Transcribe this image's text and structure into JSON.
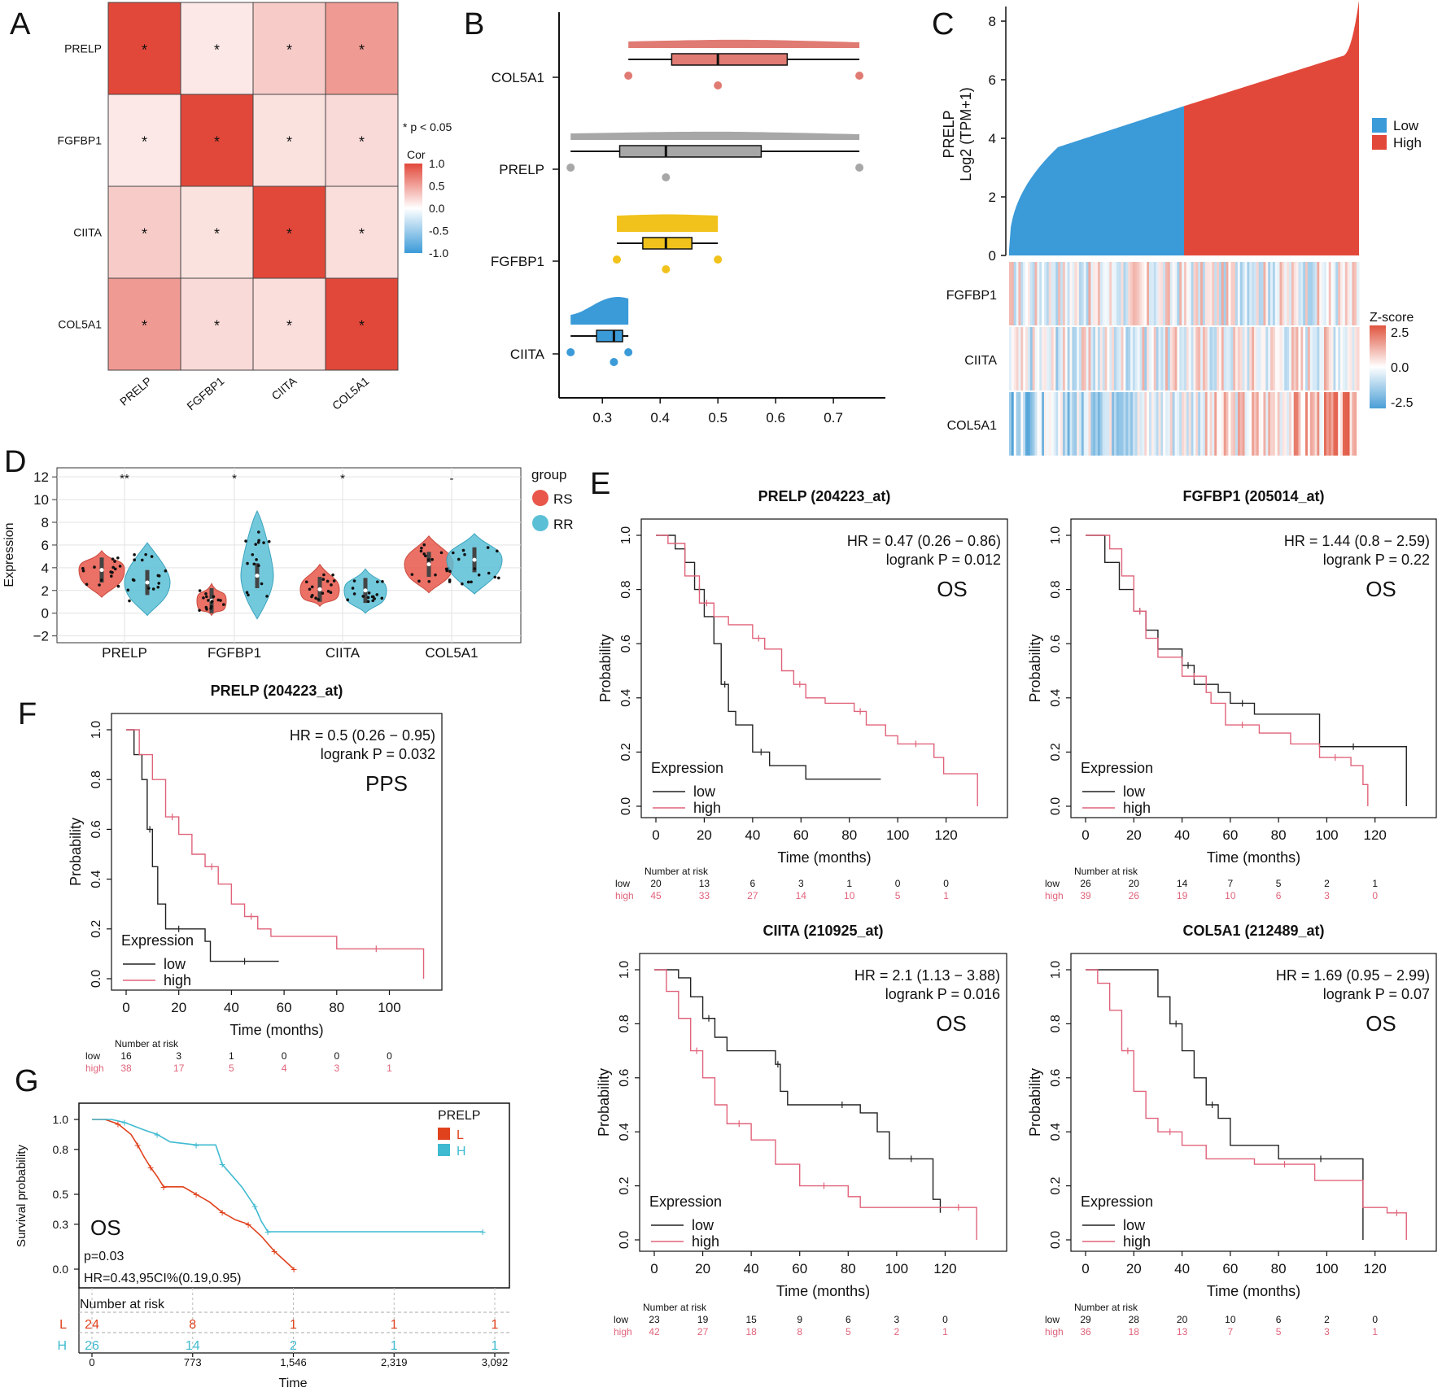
{
  "colors": {
    "red": "#e2483a",
    "blue": "#3b9ad8",
    "gray": "#a7a7a7",
    "yellow": "#f1c21b",
    "km_low": "#222222",
    "km_high": "#e0637a",
    "rs": "#e8574a",
    "rr": "#5bc0d6",
    "g_low": "#e0421d",
    "g_high": "#3fbad0"
  },
  "panel_letters": {
    "a": "A",
    "b": "B",
    "c": "C",
    "d": "D",
    "e": "E",
    "f": "F",
    "g": "G"
  },
  "chart_data": [
    {
      "id": "A",
      "type": "heatmap",
      "genes": [
        "PRELP",
        "FGFBP1",
        "CIITA",
        "COL5A1"
      ],
      "matrix": [
        [
          1.0,
          0.12,
          0.28,
          0.55
        ],
        [
          0.12,
          1.0,
          0.16,
          0.2
        ],
        [
          0.28,
          0.16,
          1.0,
          0.18
        ],
        [
          0.55,
          0.2,
          0.18,
          1.0
        ]
      ],
      "star": "*",
      "sig_note": "* p < 0.05",
      "legend_title": "Cor",
      "legend_ticks": [
        "1.0",
        "0.5",
        "0.0",
        "-0.5",
        "-1.0"
      ],
      "range": [
        -1,
        1
      ]
    },
    {
      "id": "B",
      "type": "raincloud",
      "categories": [
        "COL5A1",
        "PRELP",
        "FGFBP1",
        "CIITA"
      ],
      "boxes": [
        {
          "name": "COL5A1",
          "color": "#e07b73",
          "min": 0.345,
          "q1": 0.42,
          "median": 0.5,
          "q3": 0.62,
          "max": 0.745,
          "points": [
            0.345,
            0.5,
            0.745
          ]
        },
        {
          "name": "PRELP",
          "color": "#a7a7a7",
          "min": 0.245,
          "q1": 0.33,
          "median": 0.41,
          "q3": 0.575,
          "max": 0.745,
          "points": [
            0.245,
            0.41,
            0.745
          ]
        },
        {
          "name": "FGFBP1",
          "color": "#f1c21b",
          "min": 0.325,
          "q1": 0.37,
          "median": 0.41,
          "q3": 0.455,
          "max": 0.5,
          "points": [
            0.325,
            0.41,
            0.5
          ]
        },
        {
          "name": "CIITA",
          "color": "#3b9ad8",
          "min": 0.245,
          "q1": 0.29,
          "median": 0.32,
          "q3": 0.335,
          "max": 0.345,
          "points": [
            0.245,
            0.32,
            0.345
          ]
        }
      ],
      "xlim": [
        0.225,
        0.79
      ],
      "x_ticks": [
        "0.3",
        "0.4",
        "0.5",
        "0.6",
        "0.7"
      ]
    },
    {
      "id": "C",
      "type": "area",
      "ylabel_top": "PRELP",
      "ylabel": "Log2 (TPM+1)",
      "y_ticks": [
        "0",
        "2",
        "4",
        "6",
        "8"
      ],
      "ylim": [
        0,
        8.5
      ],
      "legend": [
        "Low",
        "High"
      ],
      "heat_rows": [
        "FGFBP1",
        "CIITA",
        "COL5A1"
      ],
      "zscore_title": "Z-score",
      "zscore_ticks": [
        "2.5",
        "0.0",
        "-2.5"
      ]
    },
    {
      "id": "D",
      "type": "violin",
      "categories": [
        "PRELP",
        "FGFBP1",
        "CIITA",
        "COL5A1"
      ],
      "ylabel": "Expression",
      "y_ticks": [
        "−2",
        "0",
        "2",
        "4",
        "6",
        "8",
        "10",
        "12"
      ],
      "ylim": [
        -2.6,
        12.8
      ],
      "significance": [
        "**",
        "*",
        "*",
        "-"
      ],
      "legend_title": "group",
      "groups": [
        "RS",
        "RR"
      ],
      "medians": {
        "RS": [
          3.8,
          1.1,
          2.1,
          4.3
        ],
        "RR": [
          2.7,
          3.3,
          2.0,
          4.7
        ]
      }
    },
    {
      "id": "E1",
      "type": "line",
      "title": "PRELP (204223_at)",
      "hr": "HR = 0.47 (0.26 − 0.86)",
      "logrank": "logrank P = 0.012",
      "tag": "OS",
      "x_ticks": [
        "0",
        "20",
        "40",
        "60",
        "80",
        "100",
        "120"
      ],
      "y_ticks": [
        "0.0",
        "0.2",
        "0.4",
        "0.6",
        "0.8",
        "1.0"
      ],
      "xlabel": "Time (months)",
      "ylabel": "Probability",
      "xlim": [
        0,
        140
      ],
      "risk": {
        "times": [
          0,
          20,
          40,
          60,
          80,
          100,
          120
        ],
        "low": [
          "20",
          "13",
          "6",
          "3",
          "1",
          "0",
          "0"
        ],
        "high": [
          "45",
          "33",
          "27",
          "14",
          "10",
          "5",
          "1"
        ]
      },
      "low": [
        [
          0,
          1.0
        ],
        [
          8,
          0.95
        ],
        [
          12,
          0.9
        ],
        [
          16,
          0.8
        ],
        [
          20,
          0.7
        ],
        [
          24,
          0.6
        ],
        [
          27,
          0.45
        ],
        [
          30,
          0.35
        ],
        [
          33,
          0.3
        ],
        [
          40,
          0.2
        ],
        [
          47,
          0.15
        ],
        [
          62,
          0.1
        ],
        [
          93,
          0.1
        ]
      ],
      "high": [
        [
          0,
          1.0
        ],
        [
          5,
          0.97
        ],
        [
          12,
          0.85
        ],
        [
          18,
          0.75
        ],
        [
          24,
          0.7
        ],
        [
          30,
          0.67
        ],
        [
          40,
          0.62
        ],
        [
          45,
          0.58
        ],
        [
          52,
          0.5
        ],
        [
          57,
          0.45
        ],
        [
          62,
          0.4
        ],
        [
          70,
          0.38
        ],
        [
          82,
          0.35
        ],
        [
          87,
          0.3
        ],
        [
          95,
          0.26
        ],
        [
          100,
          0.23
        ],
        [
          115,
          0.18
        ],
        [
          119,
          0.12
        ],
        [
          133,
          0.0
        ]
      ]
    },
    {
      "id": "E2",
      "type": "line",
      "title": "FGFBP1 (205014_at)",
      "hr": "HR = 1.44 (0.8 − 2.59)",
      "logrank": "logrank P = 0.22",
      "tag": "OS",
      "x_ticks": [
        "0",
        "20",
        "40",
        "60",
        "80",
        "100",
        "120"
      ],
      "y_ticks": [
        "0.0",
        "0.2",
        "0.4",
        "0.6",
        "0.8",
        "1.0"
      ],
      "xlabel": "Time (months)",
      "ylabel": "Probability",
      "xlim": [
        0,
        140
      ],
      "risk": {
        "times": [
          0,
          20,
          40,
          60,
          80,
          100,
          120
        ],
        "low": [
          "26",
          "20",
          "14",
          "7",
          "5",
          "2",
          "1"
        ],
        "high": [
          "39",
          "26",
          "19",
          "10",
          "6",
          "3",
          "0"
        ]
      },
      "low": [
        [
          0,
          1.0
        ],
        [
          8,
          0.9
        ],
        [
          14,
          0.8
        ],
        [
          20,
          0.72
        ],
        [
          25,
          0.65
        ],
        [
          30,
          0.58
        ],
        [
          40,
          0.52
        ],
        [
          45,
          0.45
        ],
        [
          55,
          0.42
        ],
        [
          60,
          0.38
        ],
        [
          70,
          0.34
        ],
        [
          90,
          0.34
        ],
        [
          97,
          0.22
        ],
        [
          125,
          0.22
        ],
        [
          133,
          0.0
        ]
      ],
      "high": [
        [
          0,
          1.0
        ],
        [
          10,
          0.95
        ],
        [
          15,
          0.85
        ],
        [
          20,
          0.72
        ],
        [
          25,
          0.62
        ],
        [
          30,
          0.55
        ],
        [
          40,
          0.48
        ],
        [
          50,
          0.42
        ],
        [
          52,
          0.38
        ],
        [
          58,
          0.3
        ],
        [
          72,
          0.27
        ],
        [
          85,
          0.23
        ],
        [
          97,
          0.18
        ],
        [
          110,
          0.15
        ],
        [
          115,
          0.08
        ],
        [
          117,
          0.0
        ]
      ]
    },
    {
      "id": "E3",
      "type": "line",
      "title": "CIITA (210925_at)",
      "hr": "HR = 2.1 (1.13 − 3.88)",
      "logrank": "logrank P = 0.016",
      "tag": "OS",
      "x_ticks": [
        "0",
        "20",
        "40",
        "60",
        "80",
        "100",
        "120"
      ],
      "y_ticks": [
        "0.0",
        "0.2",
        "0.4",
        "0.6",
        "0.8",
        "1.0"
      ],
      "xlabel": "Time (months)",
      "ylabel": "Probability",
      "xlim": [
        0,
        140
      ],
      "risk": {
        "times": [
          0,
          20,
          40,
          60,
          80,
          100,
          120
        ],
        "low": [
          "23",
          "19",
          "15",
          "9",
          "6",
          "3",
          "0"
        ],
        "high": [
          "42",
          "27",
          "18",
          "8",
          "5",
          "2",
          "1"
        ]
      },
      "low": [
        [
          0,
          1.0
        ],
        [
          10,
          0.97
        ],
        [
          15,
          0.9
        ],
        [
          20,
          0.82
        ],
        [
          25,
          0.75
        ],
        [
          30,
          0.7
        ],
        [
          50,
          0.65
        ],
        [
          52,
          0.55
        ],
        [
          55,
          0.5
        ],
        [
          70,
          0.5
        ],
        [
          85,
          0.47
        ],
        [
          92,
          0.4
        ],
        [
          97,
          0.3
        ],
        [
          115,
          0.15
        ],
        [
          118,
          0.1
        ]
      ],
      "high": [
        [
          0,
          1.0
        ],
        [
          5,
          0.92
        ],
        [
          10,
          0.82
        ],
        [
          15,
          0.7
        ],
        [
          20,
          0.6
        ],
        [
          25,
          0.5
        ],
        [
          30,
          0.43
        ],
        [
          40,
          0.37
        ],
        [
          50,
          0.28
        ],
        [
          60,
          0.2
        ],
        [
          80,
          0.16
        ],
        [
          85,
          0.12
        ],
        [
          118,
          0.12
        ],
        [
          133,
          0.0
        ]
      ]
    },
    {
      "id": "E4",
      "type": "line",
      "title": "COL5A1 (212489_at)",
      "hr": "HR = 1.69 (0.95 − 2.99)",
      "logrank": "logrank P = 0.07",
      "tag": "OS",
      "x_ticks": [
        "0",
        "20",
        "40",
        "60",
        "80",
        "100",
        "120"
      ],
      "y_ticks": [
        "0.0",
        "0.2",
        "0.4",
        "0.6",
        "0.8",
        "1.0"
      ],
      "xlabel": "Time (months)",
      "ylabel": "Probability",
      "xlim": [
        0,
        140
      ],
      "risk": {
        "times": [
          0,
          20,
          40,
          60,
          80,
          100,
          120
        ],
        "low": [
          "29",
          "28",
          "20",
          "10",
          "6",
          "2",
          "0"
        ],
        "high": [
          "36",
          "18",
          "13",
          "7",
          "5",
          "3",
          "1"
        ]
      },
      "low": [
        [
          0,
          1.0
        ],
        [
          25,
          1.0
        ],
        [
          30,
          0.9
        ],
        [
          35,
          0.8
        ],
        [
          40,
          0.7
        ],
        [
          45,
          0.6
        ],
        [
          50,
          0.5
        ],
        [
          55,
          0.45
        ],
        [
          60,
          0.35
        ],
        [
          80,
          0.3
        ],
        [
          115,
          0.3
        ],
        [
          115,
          0.0
        ]
      ],
      "high": [
        [
          0,
          1.0
        ],
        [
          5,
          0.95
        ],
        [
          10,
          0.85
        ],
        [
          15,
          0.7
        ],
        [
          20,
          0.55
        ],
        [
          25,
          0.45
        ],
        [
          30,
          0.4
        ],
        [
          40,
          0.35
        ],
        [
          50,
          0.3
        ],
        [
          70,
          0.28
        ],
        [
          95,
          0.22
        ],
        [
          115,
          0.12
        ],
        [
          125,
          0.1
        ],
        [
          133,
          0.0
        ]
      ]
    },
    {
      "id": "F",
      "type": "line",
      "title": "PRELP (204223_at)",
      "hr": "HR = 0.5 (0.26 − 0.95)",
      "logrank": "logrank P = 0.032",
      "tag": "PPS",
      "x_ticks": [
        "0",
        "20",
        "40",
        "60",
        "80",
        "100"
      ],
      "y_ticks": [
        "0.0",
        "0.2",
        "0.4",
        "0.6",
        "0.8",
        "1.0"
      ],
      "xlabel": "Time (months)",
      "ylabel": "Probability",
      "xlim": [
        0,
        115
      ],
      "risk": {
        "times": [
          0,
          20,
          40,
          60,
          80,
          100
        ],
        "low": [
          "16",
          "3",
          "1",
          "0",
          "0",
          "0"
        ],
        "high": [
          "38",
          "17",
          "5",
          "4",
          "3",
          "1"
        ]
      },
      "low": [
        [
          0,
          1.0
        ],
        [
          3,
          0.9
        ],
        [
          6,
          0.8
        ],
        [
          8,
          0.6
        ],
        [
          10,
          0.45
        ],
        [
          12,
          0.3
        ],
        [
          15,
          0.2
        ],
        [
          25,
          0.2
        ],
        [
          30,
          0.15
        ],
        [
          32,
          0.07
        ],
        [
          58,
          0.07
        ]
      ],
      "high": [
        [
          0,
          1.0
        ],
        [
          5,
          0.9
        ],
        [
          10,
          0.8
        ],
        [
          15,
          0.65
        ],
        [
          20,
          0.58
        ],
        [
          25,
          0.5
        ],
        [
          30,
          0.45
        ],
        [
          35,
          0.38
        ],
        [
          40,
          0.3
        ],
        [
          45,
          0.25
        ],
        [
          50,
          0.2
        ],
        [
          55,
          0.17
        ],
        [
          80,
          0.12
        ],
        [
          110,
          0.12
        ],
        [
          113,
          0.0
        ]
      ]
    },
    {
      "id": "G",
      "type": "line",
      "ylabel": "Survival probability",
      "xlabel": "Time",
      "y_ticks": [
        "0.0",
        "0.3",
        "0.5",
        "0.8",
        "1.0"
      ],
      "x_ticks": [
        "0",
        "773",
        "1,546",
        "2,319",
        "3,092"
      ],
      "xlim": [
        0,
        3092
      ],
      "legend_title": "PRELP",
      "legend": [
        "L",
        "H"
      ],
      "tag": "OS",
      "p": "p=0.03",
      "hr": "HR=0.43,95CI%(0.19,0.95)",
      "risk_title": "Number at risk",
      "risk": {
        "L": [
          "24",
          "8",
          "1",
          "1",
          "1"
        ],
        "H": [
          "26",
          "14",
          "2",
          "1",
          "1"
        ]
      },
      "low": [
        [
          0,
          1.0
        ],
        [
          100,
          1.0
        ],
        [
          200,
          0.97
        ],
        [
          300,
          0.9
        ],
        [
          350,
          0.83
        ],
        [
          400,
          0.75
        ],
        [
          450,
          0.68
        ],
        [
          500,
          0.62
        ],
        [
          550,
          0.55
        ],
        [
          700,
          0.55
        ],
        [
          800,
          0.5
        ],
        [
          900,
          0.45
        ],
        [
          1000,
          0.38
        ],
        [
          1100,
          0.33
        ],
        [
          1200,
          0.3
        ],
        [
          1300,
          0.22
        ],
        [
          1400,
          0.12
        ],
        [
          1500,
          0.04
        ],
        [
          1550,
          0.0
        ]
      ],
      "high": [
        [
          0,
          1.0
        ],
        [
          150,
          1.0
        ],
        [
          250,
          0.98
        ],
        [
          400,
          0.93
        ],
        [
          500,
          0.9
        ],
        [
          600,
          0.85
        ],
        [
          800,
          0.83
        ],
        [
          950,
          0.83
        ],
        [
          1000,
          0.7
        ],
        [
          1150,
          0.55
        ],
        [
          1250,
          0.42
        ],
        [
          1300,
          0.32
        ],
        [
          1350,
          0.25
        ],
        [
          1450,
          0.25
        ],
        [
          3000,
          0.25
        ]
      ]
    }
  ]
}
